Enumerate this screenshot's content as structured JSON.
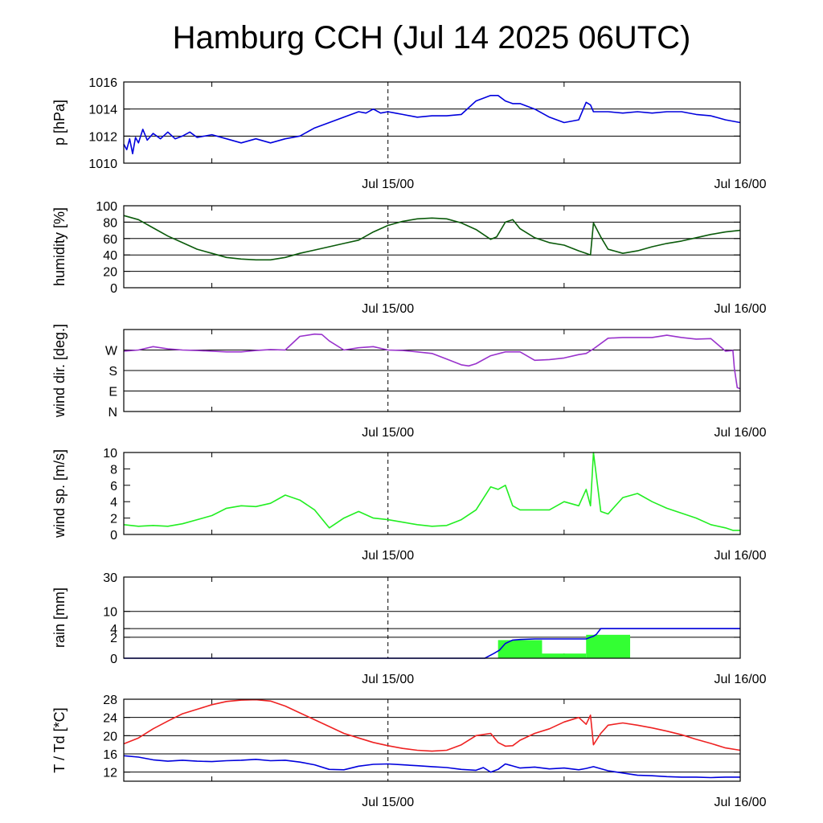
{
  "title": "Hamburg CCH (Jul 14 2025 06UTC)",
  "chart_data": [
    {
      "id": "pressure",
      "type": "line",
      "ylabel": "p [hPa]",
      "ylim": [
        1010,
        1016
      ],
      "yticks": [
        {
          "v": 1010,
          "label": "1010"
        },
        {
          "v": 1012,
          "label": "1012"
        },
        {
          "v": 1014,
          "label": "1014"
        },
        {
          "v": 1016,
          "label": "1016"
        }
      ],
      "hgrid": [
        1012,
        1014
      ],
      "xlim": [
        0,
        42
      ],
      "x_ticks": [
        {
          "x": 18,
          "label": "Jul 15/00"
        },
        {
          "x": 42,
          "label": "Jul 16/00"
        }
      ],
      "minor_x": [
        6,
        30
      ],
      "series": [
        {
          "color": "#0000dd",
          "x": [
            0,
            0.2,
            0.4,
            0.6,
            0.8,
            1,
            1.3,
            1.6,
            2,
            2.5,
            3,
            3.5,
            4,
            4.5,
            5,
            6,
            7,
            8,
            9,
            10,
            11,
            12,
            13,
            14,
            15,
            16,
            16.5,
            17,
            17.5,
            18,
            18.5,
            19,
            20,
            21,
            22,
            23,
            24,
            25,
            25.5,
            26,
            26.5,
            27,
            28,
            29,
            30,
            31,
            31.5,
            31.8,
            32,
            33,
            34,
            35,
            36,
            37,
            38,
            39,
            40,
            41,
            42
          ],
          "y": [
            1011.4,
            1011.0,
            1011.8,
            1010.7,
            1011.9,
            1011.5,
            1012.5,
            1011.7,
            1012.2,
            1011.8,
            1012.3,
            1011.8,
            1012.0,
            1012.3,
            1011.9,
            1012.1,
            1011.8,
            1011.5,
            1011.8,
            1011.5,
            1011.8,
            1012.0,
            1012.6,
            1013.0,
            1013.4,
            1013.8,
            1013.7,
            1014.0,
            1013.7,
            1013.8,
            1013.7,
            1013.6,
            1013.4,
            1013.5,
            1013.5,
            1013.6,
            1014.6,
            1015.0,
            1015.0,
            1014.6,
            1014.4,
            1014.4,
            1014.0,
            1013.4,
            1013.0,
            1013.2,
            1014.5,
            1014.3,
            1013.8,
            1013.8,
            1013.7,
            1013.8,
            1013.7,
            1013.8,
            1013.8,
            1013.6,
            1013.5,
            1013.2,
            1013.0
          ]
        }
      ]
    },
    {
      "id": "humidity",
      "type": "line",
      "ylabel": "humidity [%]",
      "ylim": [
        0,
        100
      ],
      "yticks": [
        {
          "v": 0,
          "label": "0"
        },
        {
          "v": 20,
          "label": "20"
        },
        {
          "v": 40,
          "label": "40"
        },
        {
          "v": 60,
          "label": "60"
        },
        {
          "v": 80,
          "label": "80"
        },
        {
          "v": 100,
          "label": "100"
        }
      ],
      "hgrid": [
        20,
        40,
        60,
        80
      ],
      "xlim": [
        0,
        42
      ],
      "x_ticks": [
        {
          "x": 18,
          "label": "Jul 15/00"
        },
        {
          "x": 42,
          "label": "Jul 16/00"
        }
      ],
      "minor_x": [
        6,
        30
      ],
      "series": [
        {
          "color": "#0a5a0a",
          "x": [
            0,
            1,
            2,
            3,
            4,
            5,
            6,
            7,
            8,
            9,
            10,
            11,
            12,
            13,
            14,
            15,
            16,
            17,
            18,
            19,
            20,
            21,
            22,
            23,
            24,
            25,
            25.4,
            26,
            26.5,
            27,
            28,
            29,
            30,
            31,
            31.5,
            31.8,
            32,
            32.5,
            33,
            34,
            35,
            36,
            37,
            38,
            39,
            40,
            41,
            42
          ],
          "y": [
            88,
            83,
            73,
            63,
            55,
            47,
            42,
            37,
            35,
            34,
            34,
            37,
            42,
            46,
            50,
            54,
            58,
            68,
            76,
            81,
            84,
            85,
            84,
            79,
            71,
            59,
            62,
            80,
            83,
            72,
            61,
            55,
            52,
            45,
            42,
            40,
            79,
            62,
            47,
            42,
            45,
            50,
            54,
            57,
            61,
            65,
            68,
            70
          ]
        }
      ]
    },
    {
      "id": "wind_direction",
      "type": "line",
      "ylabel": "wind dir. [deg.]",
      "ylim": [
        0,
        360
      ],
      "yticks": [
        {
          "v": 0,
          "label": "N"
        },
        {
          "v": 90,
          "label": "E"
        },
        {
          "v": 180,
          "label": "S"
        },
        {
          "v": 270,
          "label": "W"
        }
      ],
      "hgrid": [
        90,
        180,
        270
      ],
      "xlim": [
        0,
        42
      ],
      "x_ticks": [
        {
          "x": 18,
          "label": "Jul 15/00"
        },
        {
          "x": 42,
          "label": "Jul 16/00"
        }
      ],
      "minor_x": [
        6,
        30
      ],
      "series": [
        {
          "color": "#9933cc",
          "x": [
            0,
            1,
            2,
            3,
            4,
            5,
            6,
            7,
            8,
            9,
            10,
            11,
            12,
            13,
            13.5,
            14,
            15,
            16,
            17,
            18,
            19,
            20,
            21,
            22,
            23,
            23.5,
            24,
            25,
            26,
            27,
            28,
            29,
            30,
            31,
            31.5,
            32,
            33,
            34,
            35,
            36,
            37,
            38,
            39,
            40,
            41,
            41.5,
            41.6,
            41.8,
            42
          ],
          "y": [
            265,
            270,
            285,
            275,
            270,
            268,
            265,
            262,
            262,
            268,
            272,
            270,
            330,
            340,
            338,
            310,
            270,
            280,
            285,
            270,
            268,
            262,
            255,
            230,
            205,
            200,
            210,
            245,
            262,
            262,
            225,
            228,
            235,
            250,
            255,
            275,
            322,
            325,
            325,
            325,
            335,
            325,
            318,
            320,
            265,
            268,
            190,
            105,
            100
          ]
        }
      ]
    },
    {
      "id": "wind_speed",
      "type": "line",
      "ylabel": "wind sp. [m/s]",
      "ylim": [
        0,
        10
      ],
      "yticks": [
        {
          "v": 0,
          "label": "0"
        },
        {
          "v": 2,
          "label": "2"
        },
        {
          "v": 4,
          "label": "4"
        },
        {
          "v": 6,
          "label": "6"
        },
        {
          "v": 8,
          "label": "8"
        },
        {
          "v": 10,
          "label": "10"
        }
      ],
      "hgrid": [],
      "xlim": [
        0,
        42
      ],
      "x_ticks": [
        {
          "x": 18,
          "label": "Jul 15/00"
        },
        {
          "x": 42,
          "label": "Jul 16/00"
        }
      ],
      "minor_x": [
        6,
        30
      ],
      "series": [
        {
          "color": "#22ee22",
          "x": [
            0,
            1,
            2,
            3,
            4,
            5,
            6,
            7,
            8,
            9,
            10,
            11,
            12,
            13,
            14,
            15,
            16,
            17,
            18,
            19,
            20,
            21,
            22,
            23,
            24,
            25,
            25.5,
            26,
            26.5,
            27,
            28,
            29,
            30,
            31,
            31.5,
            31.8,
            32,
            32.5,
            33,
            34,
            35,
            36,
            37,
            38,
            39,
            40,
            41,
            41.5,
            42
          ],
          "y": [
            1.2,
            1.0,
            1.1,
            1.0,
            1.3,
            1.8,
            2.3,
            3.2,
            3.5,
            3.4,
            3.8,
            4.8,
            4.2,
            3.0,
            0.8,
            2.0,
            2.8,
            2.0,
            1.8,
            1.5,
            1.2,
            1.0,
            1.1,
            1.8,
            3.0,
            5.8,
            5.5,
            6.0,
            3.5,
            3.0,
            3.0,
            3.0,
            4.0,
            3.5,
            5.5,
            3.5,
            10.0,
            2.8,
            2.5,
            4.5,
            5.0,
            4.0,
            3.2,
            2.6,
            2.0,
            1.2,
            0.8,
            0.5,
            0.5
          ]
        }
      ]
    },
    {
      "id": "rain",
      "type": "bar+line",
      "ylabel": "rain [mm]",
      "scale": "sqrt",
      "ylim": [
        0,
        30
      ],
      "yticks": [
        {
          "v": 0,
          "label": "0"
        },
        {
          "v": 2,
          "label": "2"
        },
        {
          "v": 4,
          "label": "4"
        },
        {
          "v": 10,
          "label": "10"
        },
        {
          "v": 30,
          "label": "30"
        }
      ],
      "hgrid": [
        2,
        4,
        10
      ],
      "xlim": [
        0,
        42
      ],
      "x_ticks": [
        {
          "x": 18,
          "label": "Jul 15/00"
        },
        {
          "x": 42,
          "label": "Jul 16/00"
        }
      ],
      "minor_x": [
        6,
        30
      ],
      "bars": {
        "color": "#33ff33",
        "items": [
          {
            "x0": 25.5,
            "x1": 28.5,
            "value": 1.5
          },
          {
            "x0": 28.5,
            "x1": 31.5,
            "value": 0.1
          },
          {
            "x0": 31.5,
            "x1": 34.5,
            "value": 2.5
          }
        ]
      },
      "series": [
        {
          "color": "#0000dd",
          "x": [
            0,
            24,
            24.6,
            25.2,
            25.6,
            26,
            26.5,
            27,
            28,
            30,
            31.5,
            31.8,
            32,
            32.2,
            32.5,
            33,
            35,
            42
          ],
          "y": [
            0,
            0,
            0,
            0.1,
            0.3,
            1.0,
            1.5,
            1.6,
            1.7,
            1.7,
            1.7,
            2.0,
            2.2,
            2.6,
            4.0,
            4.0,
            4.0,
            4.0
          ]
        }
      ]
    },
    {
      "id": "temperature",
      "type": "line",
      "ylabel": "T / Td [*C]",
      "ylim": [
        10,
        28
      ],
      "yticks": [
        {
          "v": 12,
          "label": "12"
        },
        {
          "v": 16,
          "label": "16"
        },
        {
          "v": 20,
          "label": "20"
        },
        {
          "v": 24,
          "label": "24"
        },
        {
          "v": 28,
          "label": "28"
        }
      ],
      "hgrid": [
        12,
        16,
        20,
        24
      ],
      "xlim": [
        0,
        42
      ],
      "x_ticks": [
        {
          "x": 18,
          "label": "Jul 15/00"
        },
        {
          "x": 42,
          "label": "Jul 16/00"
        }
      ],
      "minor_x": [
        6,
        30
      ],
      "series": [
        {
          "color": "#ee2222",
          "x": [
            0,
            1,
            2,
            3,
            4,
            5,
            6,
            7,
            8,
            9,
            10,
            11,
            12,
            13,
            14,
            15,
            16,
            17,
            18,
            19,
            20,
            21,
            22,
            23,
            24,
            25,
            25.5,
            26,
            26.5,
            27,
            28,
            29,
            30,
            31,
            31.5,
            31.8,
            32,
            32.5,
            33,
            34,
            35,
            36,
            37,
            38,
            39,
            40,
            41,
            42
          ],
          "y": [
            18.2,
            19.5,
            21.5,
            23.2,
            24.8,
            25.8,
            26.8,
            27.5,
            27.8,
            27.9,
            27.6,
            26.5,
            25.0,
            23.5,
            22.0,
            20.5,
            19.5,
            18.5,
            17.8,
            17.2,
            16.8,
            16.6,
            16.8,
            18.0,
            20.0,
            20.5,
            18.5,
            17.7,
            17.8,
            19.0,
            20.5,
            21.5,
            23.0,
            24.0,
            22.5,
            24.5,
            18.0,
            20.5,
            22.3,
            22.8,
            22.3,
            21.7,
            21.0,
            20.2,
            19.2,
            18.3,
            17.3,
            16.8
          ]
        },
        {
          "color": "#0000dd",
          "x": [
            0,
            1,
            2,
            3,
            4,
            5,
            6,
            7,
            8,
            9,
            10,
            11,
            12,
            13,
            14,
            15,
            16,
            17,
            18,
            19,
            20,
            21,
            22,
            23,
            24,
            24.5,
            25,
            25.5,
            26,
            27,
            28,
            29,
            30,
            31,
            31.5,
            32,
            33,
            34,
            35,
            36,
            37,
            38,
            39,
            40,
            41,
            42
          ],
          "y": [
            15.6,
            15.3,
            14.7,
            14.4,
            14.6,
            14.4,
            14.3,
            14.5,
            14.6,
            14.8,
            14.5,
            14.6,
            14.2,
            13.6,
            12.6,
            12.5,
            13.3,
            13.7,
            13.8,
            13.6,
            13.4,
            13.2,
            13.0,
            12.6,
            12.4,
            13.0,
            12.0,
            12.6,
            13.8,
            12.9,
            13.1,
            12.7,
            12.9,
            12.5,
            12.8,
            13.2,
            12.3,
            11.8,
            11.3,
            11.2,
            11.0,
            10.9,
            10.9,
            10.8,
            10.9,
            10.9
          ]
        }
      ]
    }
  ]
}
